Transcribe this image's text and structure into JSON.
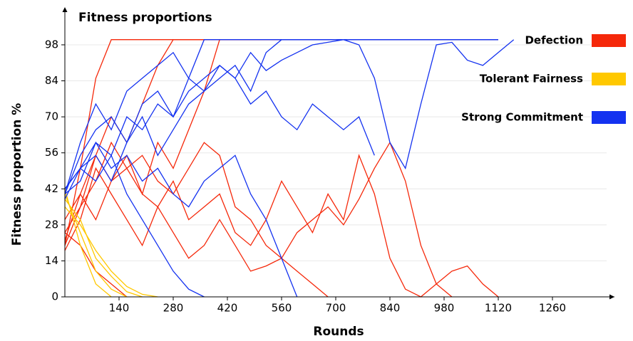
{
  "chart_data": {
    "type": "line",
    "title": "Fitness proportions",
    "x_label": "Rounds",
    "y_label": "Fitness proportion %",
    "x": [
      0,
      40,
      80,
      120,
      160,
      200,
      240,
      280,
      320,
      360,
      400,
      440,
      480,
      520,
      560,
      600,
      640,
      680,
      720,
      760,
      800,
      840,
      880,
      920,
      960,
      1000,
      1040,
      1080,
      1120,
      1160
    ],
    "series": [
      {
        "name": "Defection",
        "color": "#f5280a",
        "runs": [
          [
            20,
            50,
            85,
            100,
            100,
            100,
            100,
            100,
            100,
            100,
            100,
            100,
            100,
            100,
            100,
            100,
            100,
            100,
            100,
            100,
            100,
            100,
            100,
            100,
            100,
            100,
            100,
            100,
            100,
            null
          ],
          [
            25,
            35,
            55,
            70,
            60,
            75,
            90,
            100,
            100,
            100,
            100,
            100,
            100,
            100,
            100,
            100,
            100,
            100,
            100,
            100,
            100,
            100,
            100,
            100,
            100,
            100,
            100,
            100,
            100,
            null
          ],
          [
            22,
            40,
            30,
            45,
            55,
            40,
            60,
            50,
            65,
            80,
            100,
            100,
            100,
            100,
            100,
            100,
            100,
            100,
            100,
            100,
            100,
            100,
            100,
            100,
            100,
            100,
            100,
            100,
            100,
            null
          ],
          [
            30,
            40,
            55,
            45,
            50,
            40,
            35,
            45,
            30,
            35,
            40,
            25,
            20,
            30,
            45,
            35,
            25,
            40,
            30,
            55,
            40,
            15,
            3,
            0,
            5,
            10,
            12,
            5,
            0,
            null
          ],
          [
            18,
            30,
            50,
            40,
            30,
            20,
            35,
            25,
            15,
            20,
            30,
            20,
            10,
            12,
            15,
            10,
            5,
            0,
            null,
            null,
            null,
            null,
            null,
            null,
            null,
            null,
            null,
            null,
            null,
            null
          ],
          [
            25,
            20,
            10,
            5,
            0,
            null,
            null,
            null,
            null,
            null,
            null,
            null,
            null,
            null,
            null,
            null,
            null,
            null,
            null,
            null,
            null,
            null,
            null,
            null,
            null,
            null,
            null,
            null,
            null,
            null
          ],
          [
            20,
            35,
            45,
            60,
            50,
            55,
            45,
            40,
            50,
            60,
            55,
            35,
            30,
            20,
            15,
            25,
            30,
            35,
            28,
            38,
            50,
            60,
            45,
            20,
            5,
            0,
            null,
            null,
            null,
            null
          ]
        ]
      },
      {
        "name": "Tolerant Fairness",
        "color": "#ffc800",
        "runs": [
          [
            40,
            25,
            10,
            3,
            0,
            null,
            null,
            null,
            null,
            null,
            null,
            null,
            null,
            null,
            null,
            null,
            null,
            null,
            null,
            null,
            null,
            null,
            null,
            null,
            null,
            null,
            null,
            null,
            null,
            null
          ],
          [
            38,
            30,
            15,
            8,
            2,
            0,
            null,
            null,
            null,
            null,
            null,
            null,
            null,
            null,
            null,
            null,
            null,
            null,
            null,
            null,
            null,
            null,
            null,
            null,
            null,
            null,
            null,
            null,
            null,
            null
          ],
          [
            42,
            20,
            5,
            0,
            null,
            null,
            null,
            null,
            null,
            null,
            null,
            null,
            null,
            null,
            null,
            null,
            null,
            null,
            null,
            null,
            null,
            null,
            null,
            null,
            null,
            null,
            null,
            null,
            null,
            null
          ],
          [
            35,
            28,
            18,
            10,
            4,
            1,
            0,
            null,
            null,
            null,
            null,
            null,
            null,
            null,
            null,
            null,
            null,
            null,
            null,
            null,
            null,
            null,
            null,
            null,
            null,
            null,
            null,
            null,
            null,
            null
          ]
        ]
      },
      {
        "name": "Strong Commitment",
        "color": "#1432f0",
        "runs": [
          [
            40,
            60,
            75,
            65,
            80,
            85,
            90,
            95,
            85,
            100,
            100,
            100,
            100,
            100,
            100,
            100,
            100,
            100,
            100,
            100,
            100,
            100,
            100,
            100,
            100,
            100,
            100,
            100,
            100,
            null
          ],
          [
            42,
            50,
            55,
            45,
            60,
            70,
            55,
            65,
            75,
            80,
            85,
            90,
            80,
            95,
            100,
            100,
            100,
            100,
            100,
            100,
            100,
            100,
            100,
            100,
            100,
            100,
            100,
            100,
            100,
            null
          ],
          [
            40,
            55,
            65,
            70,
            60,
            75,
            80,
            70,
            85,
            80,
            90,
            85,
            95,
            88,
            92,
            95,
            98,
            99,
            100,
            98,
            85,
            60,
            50,
            75,
            98,
            99,
            92,
            90,
            95,
            100
          ],
          [
            42,
            50,
            45,
            55,
            40,
            30,
            20,
            10,
            3,
            0,
            null,
            null,
            null,
            null,
            null,
            null,
            null,
            null,
            null,
            null,
            null,
            null,
            null,
            null,
            null,
            null,
            null,
            null,
            null,
            null
          ],
          [
            40,
            45,
            60,
            50,
            55,
            45,
            50,
            40,
            35,
            45,
            50,
            55,
            40,
            30,
            15,
            0,
            null,
            null,
            null,
            null,
            null,
            null,
            null,
            null,
            null,
            null,
            null,
            null,
            null,
            null
          ],
          [
            38,
            50,
            60,
            55,
            70,
            65,
            75,
            70,
            80,
            85,
            90,
            85,
            75,
            80,
            70,
            65,
            75,
            70,
            65,
            70,
            55,
            null,
            null,
            null,
            null,
            null,
            null,
            null,
            null,
            null
          ]
        ]
      }
    ],
    "xlim": [
      0,
      1400
    ],
    "ylim": [
      0,
      111
    ],
    "xticks": [
      140,
      280,
      420,
      560,
      700,
      840,
      980,
      1120,
      1260
    ],
    "yticks": [
      0,
      14,
      28,
      42,
      56,
      70,
      84,
      98
    ],
    "grid": true,
    "legend": "right"
  }
}
